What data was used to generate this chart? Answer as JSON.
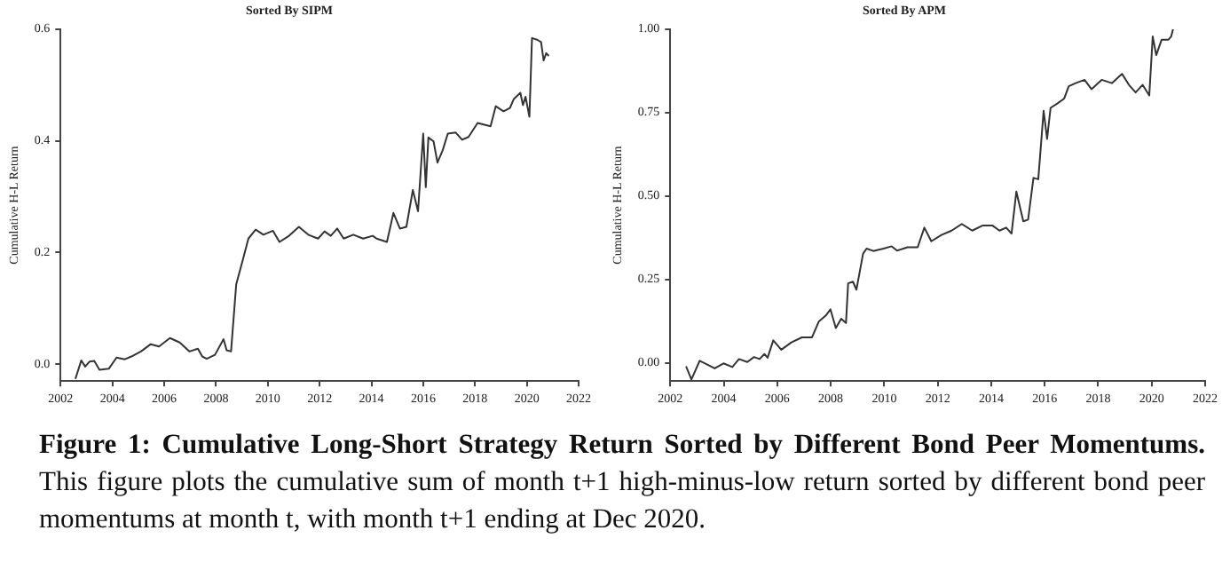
{
  "chart_data": [
    {
      "type": "line",
      "title": "Sorted By SIPM",
      "ylabel": "Cumulative H-L Return",
      "color": "#333333",
      "x": [
        2002.57,
        2002.8,
        2002.95,
        2003.12,
        2003.3,
        2003.5,
        2003.86,
        2004.16,
        2004.48,
        2004.73,
        2005.1,
        2005.48,
        2005.8,
        2006.22,
        2006.6,
        2006.97,
        2007.3,
        2007.47,
        2007.64,
        2007.96,
        2008.29,
        2008.41,
        2008.58,
        2008.78,
        2009.03,
        2009.25,
        2009.53,
        2009.83,
        2010.2,
        2010.45,
        2010.82,
        2011.2,
        2011.56,
        2011.94,
        2012.19,
        2012.43,
        2012.68,
        2012.93,
        2013.3,
        2013.68,
        2014.05,
        2014.2,
        2014.6,
        2014.85,
        2015.1,
        2015.35,
        2015.6,
        2015.8,
        2016.0,
        2016.1,
        2016.2,
        2016.4,
        2016.55,
        2016.75,
        2016.95,
        2017.25,
        2017.5,
        2017.75,
        2018.1,
        2018.6,
        2018.8,
        2019.1,
        2019.35,
        2019.5,
        2019.75,
        2019.85,
        2019.95,
        2020.1,
        2020.2,
        2020.4,
        2020.55,
        2020.65,
        2020.75,
        2020.85
      ],
      "values": [
        -0.026,
        0.007,
        -0.004,
        0.005,
        0.006,
        -0.01,
        -0.008,
        0.012,
        0.009,
        0.014,
        0.023,
        0.036,
        0.032,
        0.047,
        0.039,
        0.023,
        0.028,
        0.014,
        0.01,
        0.017,
        0.045,
        0.025,
        0.023,
        0.143,
        0.186,
        0.225,
        0.241,
        0.232,
        0.239,
        0.219,
        0.23,
        0.246,
        0.232,
        0.225,
        0.238,
        0.23,
        0.243,
        0.225,
        0.232,
        0.225,
        0.23,
        0.225,
        0.219,
        0.271,
        0.243,
        0.246,
        0.312,
        0.274,
        0.413,
        0.317,
        0.406,
        0.399,
        0.361,
        0.383,
        0.413,
        0.415,
        0.402,
        0.407,
        0.432,
        0.426,
        0.462,
        0.453,
        0.459,
        0.475,
        0.486,
        0.464,
        0.479,
        0.443,
        0.584,
        0.581,
        0.577,
        0.544,
        0.557,
        0.552
      ],
      "xlim": [
        2002,
        2022
      ],
      "xticks": [
        2002,
        2004,
        2006,
        2008,
        2010,
        2012,
        2014,
        2016,
        2018,
        2020,
        2022
      ],
      "ylim": [
        -0.03,
        0.6
      ],
      "yticks": [
        {
          "value": 0,
          "label": "0.0"
        },
        {
          "value": 0.2,
          "label": "0.2"
        },
        {
          "value": 0.4,
          "label": "0.4"
        },
        {
          "value": 0.6,
          "label": "0.6"
        }
      ]
    },
    {
      "type": "line",
      "title": "Sorted By APM",
      "ylabel": "Cumulative H-L Return",
      "color": "#333333",
      "x": [
        2002.59,
        2002.79,
        2003.1,
        2003.35,
        2003.66,
        2003.99,
        2004.32,
        2004.57,
        2004.88,
        2005.13,
        2005.34,
        2005.52,
        2005.64,
        2005.85,
        2006.15,
        2006.53,
        2006.92,
        2007.3,
        2007.55,
        2007.81,
        2007.99,
        2008.19,
        2008.39,
        2008.57,
        2008.65,
        2008.83,
        2008.96,
        2009.21,
        2009.34,
        2009.59,
        2009.97,
        2010.28,
        2010.48,
        2010.87,
        2011.25,
        2011.5,
        2011.76,
        2012.14,
        2012.52,
        2012.9,
        2013.29,
        2013.67,
        2014.05,
        2014.31,
        2014.56,
        2014.76,
        2014.94,
        2015.2,
        2015.38,
        2015.58,
        2015.76,
        2015.96,
        2016.09,
        2016.22,
        2016.47,
        2016.73,
        2016.9,
        2017.16,
        2017.49,
        2017.75,
        2018.13,
        2018.51,
        2018.89,
        2019.15,
        2019.4,
        2019.66,
        2019.91,
        2020.04,
        2020.17,
        2020.37,
        2020.62,
        2020.73,
        2020.8
      ],
      "values": [
        -0.011,
        -0.05,
        0.006,
        -0.004,
        -0.017,
        -0.002,
        -0.013,
        0.011,
        0.002,
        0.017,
        0.011,
        0.026,
        0.015,
        0.067,
        0.039,
        0.061,
        0.076,
        0.076,
        0.123,
        0.141,
        0.16,
        0.104,
        0.132,
        0.119,
        0.238,
        0.243,
        0.219,
        0.327,
        0.342,
        0.335,
        0.342,
        0.349,
        0.336,
        0.346,
        0.346,
        0.405,
        0.364,
        0.383,
        0.396,
        0.416,
        0.396,
        0.411,
        0.411,
        0.396,
        0.405,
        0.387,
        0.513,
        0.424,
        0.429,
        0.554,
        0.55,
        0.755,
        0.671,
        0.764,
        0.777,
        0.792,
        0.829,
        0.838,
        0.848,
        0.82,
        0.848,
        0.838,
        0.866,
        0.833,
        0.81,
        0.833,
        0.801,
        0.978,
        0.922,
        0.968,
        0.968,
        0.978,
        1.0
      ],
      "xlim": [
        2002,
        2022
      ],
      "xticks": [
        2002,
        2004,
        2006,
        2008,
        2010,
        2012,
        2014,
        2016,
        2018,
        2020,
        2022
      ],
      "ylim": [
        -0.055,
        1.0
      ],
      "yticks": [
        {
          "value": 0,
          "label": "0.00"
        },
        {
          "value": 0.25,
          "label": "0.25"
        },
        {
          "value": 0.5,
          "label": "0.50"
        },
        {
          "value": 0.75,
          "label": "0.75"
        },
        {
          "value": 1,
          "label": "1.00"
        }
      ]
    },
    {
      "type": "other",
      "title": "Figure 1: Cumulative Long-Short Strategy Return Sorted by Different Bond Peer Momentums.",
      "annotations": [
        "This figure plots the cumulative sum of month t+1 high-minus-low return sorted by different bond peer momentums at month t, with month t+1 ending at Dec 2020."
      ]
    }
  ]
}
